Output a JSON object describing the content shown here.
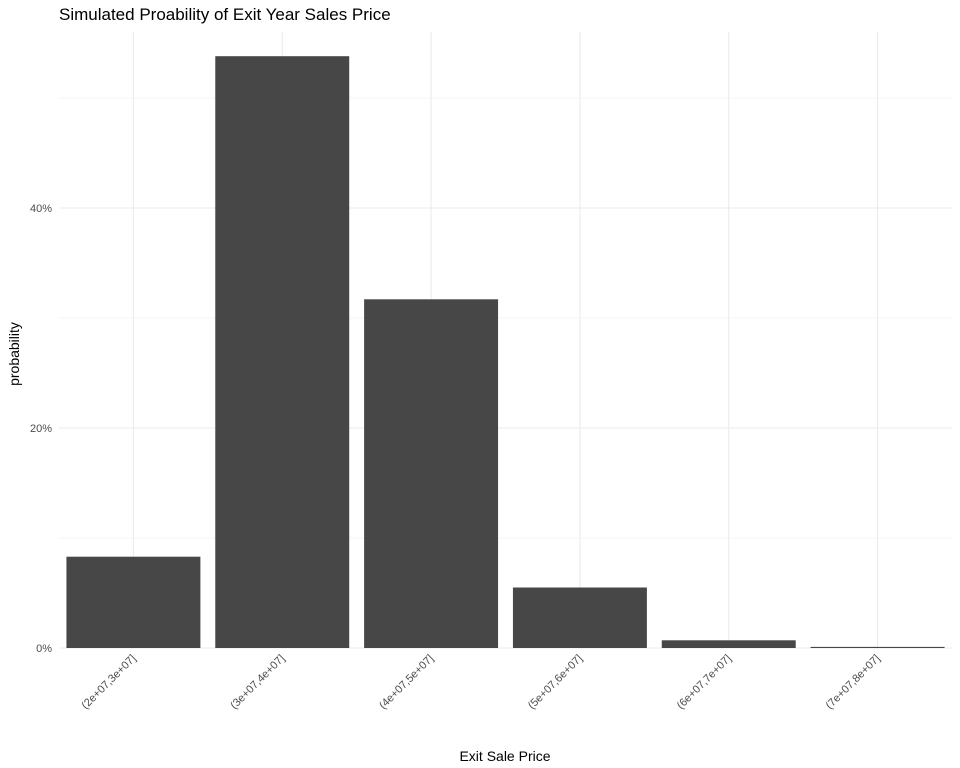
{
  "chart_data": {
    "type": "bar",
    "title": "Simulated Proability of Exit Year Sales Price",
    "xlabel": "Exit Sale Price",
    "ylabel": "probability",
    "categories": [
      "(2e+07,3e+07]",
      "(3e+07,4e+07]",
      "(4e+07,5e+07]",
      "(5e+07,6e+07]",
      "(6e+07,7e+07]",
      "(7e+07,8e+07]"
    ],
    "values": [
      0.083,
      0.538,
      0.317,
      0.055,
      0.007,
      0.001
    ],
    "ylim": [
      0,
      0.56
    ],
    "yticks": [
      0,
      0.2,
      0.4
    ],
    "ytick_labels": [
      "0%",
      "20%",
      "40%"
    ],
    "grid": true,
    "bar_color": "#474747",
    "legend": "none"
  }
}
